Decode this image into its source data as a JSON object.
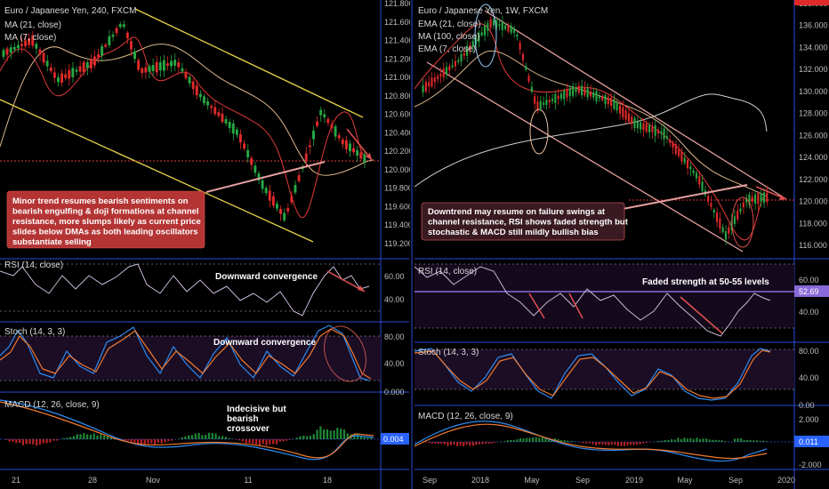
{
  "colors": {
    "background": "#000000",
    "separator": "#2a4bd6",
    "up": "#27a844",
    "down": "#e02a2a",
    "channel_left": "#e8d44a",
    "channel_right": "#e8a0a0",
    "ma_red": "#e23a3a",
    "ma_tan": "#d9b48a",
    "rsi_line": "#c9b7d8",
    "stoch_k": "#2e8bf0",
    "stoch_d": "#f07a2e",
    "note_left_bg": "#c83a3a",
    "note_right_bg": "#3a1a22",
    "resistance": "#e03a3a",
    "level_purple": "#8a6ad8",
    "price_badge": "#2962ff"
  },
  "left_panel": {
    "title": "Euro / Japanese Yen, 240, FXCM",
    "indicators": [
      "MA (21, close)",
      "MA (7, close)"
    ],
    "note": "Minor trend resumes bearish sentiments on bearish engulfing & doji formations at channel resistance, more slumps likely as current price slides below DMAs as both leading oscillators substantiate selling",
    "rsi_label": "RSI (14, close)",
    "rsi_note": "Downward convergence",
    "stoch_label": "Stoch (14, 3, 3)",
    "stoch_note": "Downward convergence",
    "macd_label": "MACD (12, 26, close, 9)",
    "macd_note": "Indecisive but bearish crossover",
    "macd_badge": "0.004",
    "x_ticks": [
      "21",
      "28",
      "Nov",
      "11",
      "18"
    ],
    "price_ticks": [
      "121.800",
      "121.600",
      "121.400",
      "121.200",
      "121.000",
      "120.800",
      "120.600",
      "120.400",
      "120.200",
      "120.000",
      "119.800",
      "119.600",
      "119.400",
      "119.200"
    ],
    "rsi_ticks": [
      "60.00",
      "40.00"
    ],
    "stoch_ticks": [
      "80.00",
      "40.00",
      "0.000"
    ]
  },
  "right_panel": {
    "title": "Euro / Japanese Yen, 1W, FXCM",
    "indicators": [
      "EMA (21, close)",
      "MA (100, close)",
      "EMA (7, close)"
    ],
    "note": "Downtrend may resume on failure swings at channel resistance, RSI shows faded strength but stochastic & MACD still mildly bullish bias",
    "rsi_label": "RSI (14, close)",
    "rsi_note": "Faded strength at 50-55 levels",
    "rsi_badge": "52.69",
    "stoch_label": "Stoch (14, 3, 3)",
    "macd_label": "MACD (12, 26, close, 9)",
    "macd_badge": "0.011",
    "x_ticks": [
      "Sep",
      "2018",
      "May",
      "Sep",
      "2019",
      "May",
      "Sep",
      "2020"
    ],
    "price_ticks": [
      "138.000",
      "136.000",
      "134.000",
      "132.000",
      "130.000",
      "128.000",
      "126.000",
      "124.000",
      "122.000",
      "120.000",
      "118.000",
      "116.000"
    ],
    "rsi_ticks": [
      "60.00",
      "40.00"
    ],
    "stoch_ticks": [
      "80.00",
      "40.00",
      "0.00"
    ],
    "macd_ticks": [
      "2.000",
      "-2.000"
    ]
  },
  "chart_data": [
    {
      "type": "candlestick",
      "title": "Euro / Japanese Yen, 240, FXCM",
      "ylim": [
        119.1,
        121.85
      ],
      "x_ticks": [
        "21",
        "28",
        "Nov",
        "11",
        "18"
      ],
      "series": [
        {
          "name": "MA (21, close)",
          "values": [
            120.6,
            120.75,
            120.9,
            121.0,
            121.05,
            121.0,
            120.8,
            120.55,
            120.35,
            120.15,
            120.05,
            120.0
          ]
        },
        {
          "name": "MA (7, close)",
          "values": [
            121.1,
            121.3,
            120.95,
            121.2,
            121.15,
            120.7,
            120.4,
            120.3,
            119.8,
            119.6,
            120.35,
            120.05
          ]
        }
      ],
      "close": [
        121.2,
        121.35,
        120.9,
        121.15,
        121.25,
        120.85,
        120.4,
        120.3,
        119.7,
        119.55,
        120.45,
        120.0
      ]
    },
    {
      "type": "candlestick",
      "title": "Euro / Japanese Yen, 1W, FXCM",
      "ylim": [
        115.0,
        138.0
      ],
      "x_ticks": [
        "Sep",
        "2018",
        "May",
        "Sep",
        "2019",
        "May",
        "Sep",
        "2020"
      ],
      "series": [
        {
          "name": "EMA (21, close)",
          "values": [
            131.0,
            133.0,
            132.5,
            131.0,
            130.0,
            128.5,
            127.0,
            125.0,
            123.5,
            121.5,
            120.5,
            120.0
          ]
        },
        {
          "name": "MA (100, close)",
          "values": [
            119.5,
            122.0,
            124.5,
            126.0,
            127.0,
            127.5,
            128.0,
            128.5,
            129.0,
            129.5,
            128.5,
            126.5
          ]
        },
        {
          "name": "EMA (7, close)",
          "values": [
            132.0,
            135.0,
            131.5,
            130.0,
            128.5,
            127.5,
            124.0,
            122.0,
            121.0,
            118.0,
            120.0,
            120.0
          ]
        }
      ],
      "close": [
        132.0,
        136.0,
        131.0,
        130.0,
        128.0,
        127.0,
        123.5,
        122.5,
        121.0,
        117.0,
        120.5,
        120.0
      ]
    }
  ]
}
